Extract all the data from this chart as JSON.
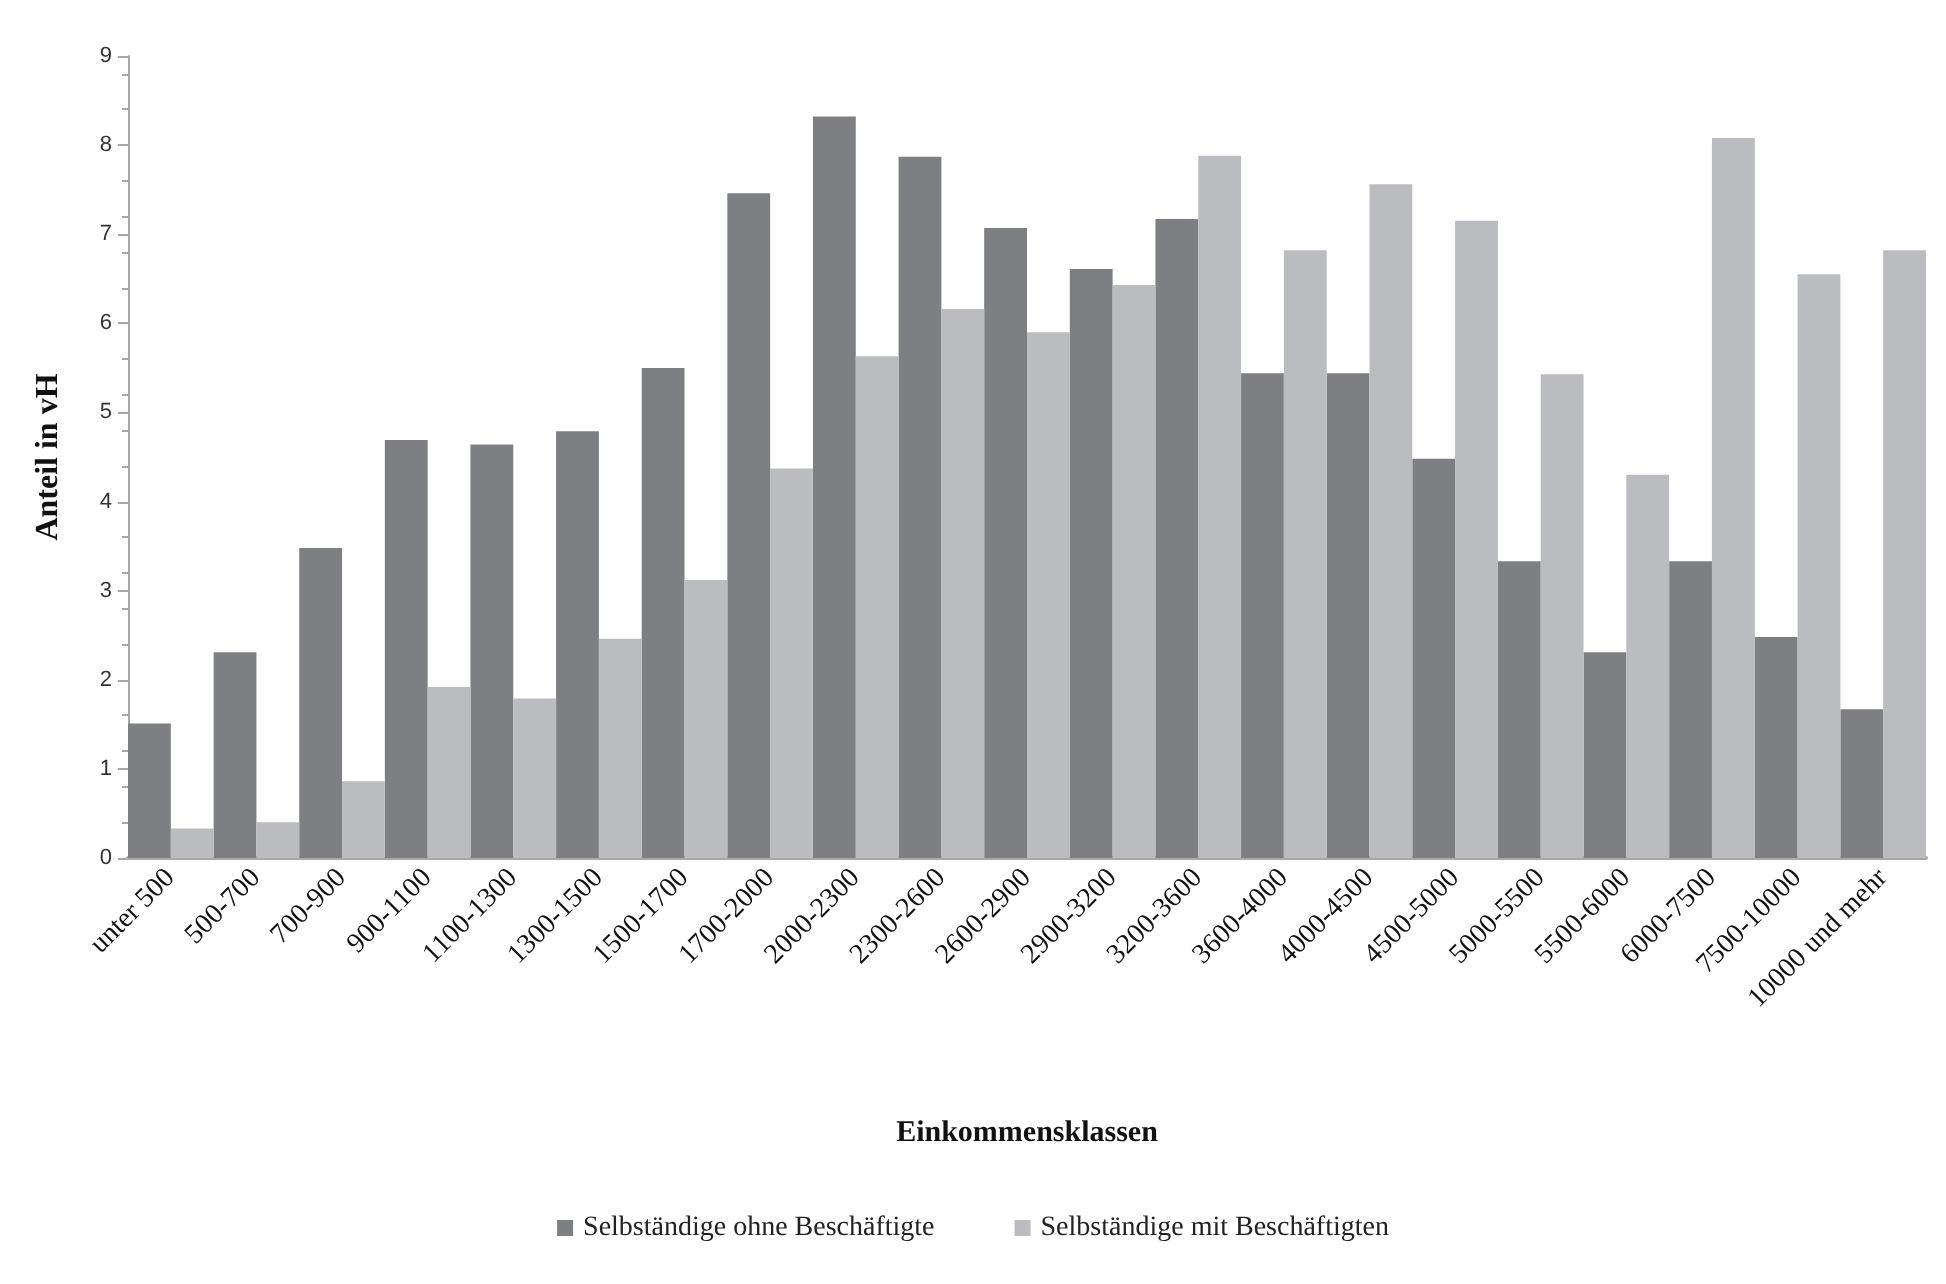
{
  "chart_data": {
    "type": "bar",
    "xlabel": "Einkommensklassen",
    "ylabel": "Anteil in vH",
    "categories": [
      "unter 500",
      "500-700",
      "700-900",
      "900-1100",
      "1100-1300",
      "1300-1500",
      "1500-1700",
      "1700-2000",
      "2000-2300",
      "2300-2600",
      "2600-2900",
      "2900-3200",
      "3200-3600",
      "3600-4000",
      "4000-4500",
      "4500-5000",
      "5000-5500",
      "5500-6000",
      "6000-7500",
      "7500-10000",
      "10000 und mehr"
    ],
    "series": [
      {
        "name": "Selbständige ohne Beschäftigte",
        "color": "#7e7f83",
        "values": [
          1.51,
          2.31,
          3.48,
          4.69,
          4.64,
          4.79,
          5.5,
          7.46,
          8.32,
          7.87,
          7.07,
          6.61,
          7.17,
          5.44,
          5.44,
          4.48,
          3.33,
          2.31,
          3.33,
          2.48,
          1.67
        ]
      },
      {
        "name": "Selbständige mit Beschäftigten",
        "color": "#bbbcc0",
        "values": [
          0.33,
          0.4,
          0.86,
          1.92,
          1.79,
          2.46,
          3.12,
          4.37,
          5.63,
          6.16,
          5.9,
          6.43,
          7.88,
          6.82,
          7.56,
          7.15,
          5.43,
          4.3,
          8.08,
          6.55,
          6.82
        ]
      }
    ],
    "ylim": [
      0,
      9
    ],
    "yticks": [
      0,
      1,
      2,
      3,
      4,
      5,
      6,
      7,
      8,
      9
    ],
    "grid": false,
    "legend": "bottom"
  }
}
